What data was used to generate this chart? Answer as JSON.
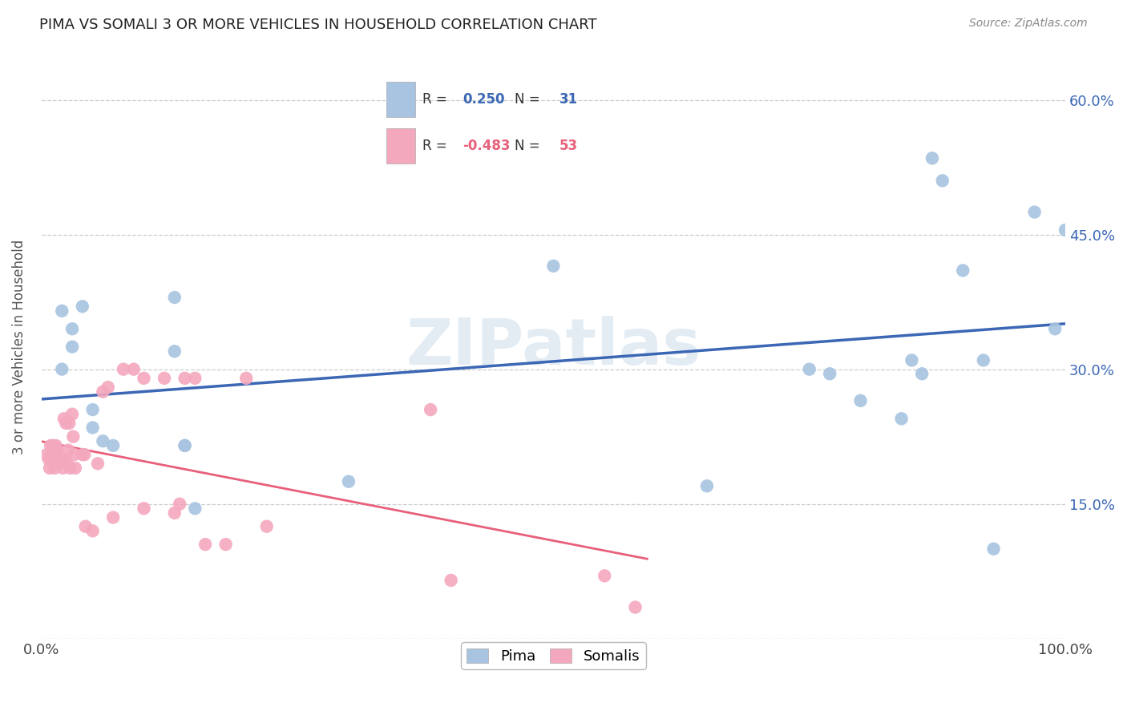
{
  "title": "PIMA VS SOMALI 3 OR MORE VEHICLES IN HOUSEHOLD CORRELATION CHART",
  "source": "Source: ZipAtlas.com",
  "ylabel": "3 or more Vehicles in Household",
  "watermark": "ZIPatlas",
  "xlim": [
    0.0,
    1.0
  ],
  "ylim": [
    0.0,
    0.65
  ],
  "ytick_vals": [
    0.0,
    0.15,
    0.3,
    0.45,
    0.6
  ],
  "ytick_labels": [
    "",
    "15.0%",
    "30.0%",
    "45.0%",
    "60.0%"
  ],
  "xtick_positions": [
    0.0,
    0.5,
    1.0
  ],
  "xtick_labels": [
    "0.0%",
    "50.0%",
    "100.0%"
  ],
  "pima_color": "#a8c4e0",
  "somali_color": "#f4a8be",
  "pima_line_color": "#3b67b5",
  "somali_line_color": "#e8607a",
  "pima_R": 0.25,
  "pima_N": 31,
  "somali_R": -0.483,
  "somali_N": 53,
  "legend_label_pima": "Pima",
  "legend_label_somali": "Somalis",
  "pima_x": [
    0.02,
    0.03,
    0.03,
    0.04,
    0.05,
    0.06,
    0.07,
    0.13,
    0.13,
    0.14,
    0.15,
    0.14,
    0.5,
    0.65,
    0.75,
    0.77,
    0.8,
    0.84,
    0.85,
    0.86,
    0.87,
    0.88,
    0.9,
    0.92,
    0.93,
    0.97,
    0.99,
    1.0,
    0.3,
    0.02,
    0.05
  ],
  "pima_y": [
    0.365,
    0.345,
    0.325,
    0.37,
    0.255,
    0.22,
    0.215,
    0.38,
    0.32,
    0.215,
    0.145,
    0.215,
    0.415,
    0.17,
    0.3,
    0.295,
    0.265,
    0.245,
    0.31,
    0.295,
    0.535,
    0.51,
    0.41,
    0.31,
    0.1,
    0.475,
    0.345,
    0.455,
    0.175,
    0.3,
    0.235
  ],
  "somali_x": [
    0.005,
    0.007,
    0.008,
    0.009,
    0.01,
    0.01,
    0.011,
    0.012,
    0.013,
    0.014,
    0.015,
    0.016,
    0.016,
    0.018,
    0.019,
    0.02,
    0.021,
    0.022,
    0.023,
    0.024,
    0.025,
    0.026,
    0.027,
    0.028,
    0.03,
    0.031,
    0.032,
    0.033,
    0.04,
    0.042,
    0.043,
    0.05,
    0.055,
    0.06,
    0.065,
    0.07,
    0.08,
    0.09,
    0.1,
    0.1,
    0.12,
    0.13,
    0.135,
    0.14,
    0.15,
    0.16,
    0.18,
    0.2,
    0.22,
    0.38,
    0.4,
    0.55,
    0.58
  ],
  "somali_y": [
    0.205,
    0.2,
    0.19,
    0.215,
    0.205,
    0.2,
    0.215,
    0.2,
    0.19,
    0.215,
    0.21,
    0.195,
    0.205,
    0.2,
    0.2,
    0.2,
    0.19,
    0.245,
    0.2,
    0.24,
    0.195,
    0.21,
    0.24,
    0.19,
    0.25,
    0.225,
    0.205,
    0.19,
    0.205,
    0.205,
    0.125,
    0.12,
    0.195,
    0.275,
    0.28,
    0.135,
    0.3,
    0.3,
    0.29,
    0.145,
    0.29,
    0.14,
    0.15,
    0.29,
    0.29,
    0.105,
    0.105,
    0.29,
    0.125,
    0.255,
    0.065,
    0.07,
    0.035
  ],
  "background_color": "#ffffff",
  "grid_color": "#cccccc",
  "title_color": "#222222"
}
